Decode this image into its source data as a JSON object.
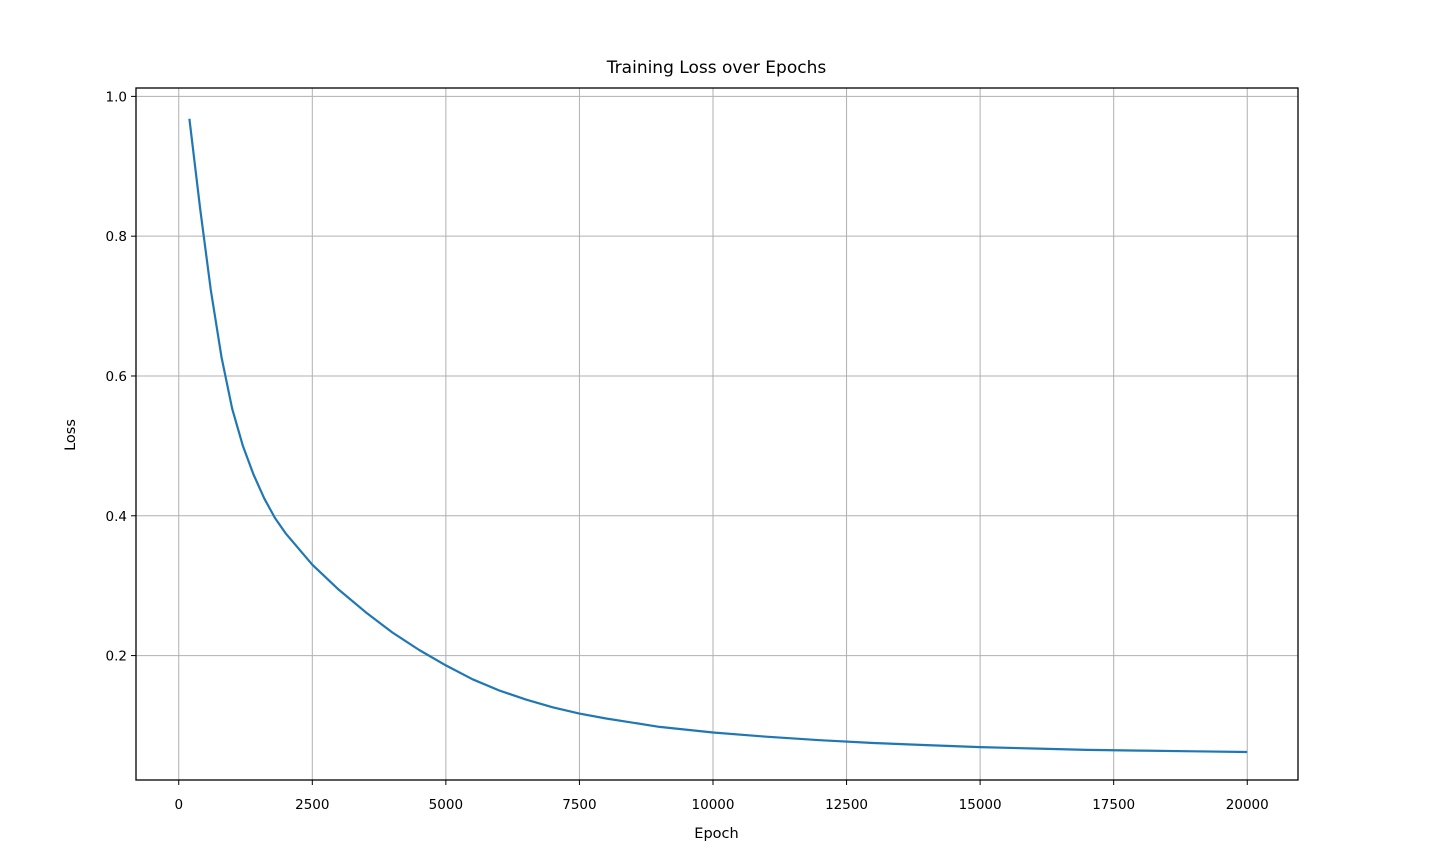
{
  "chart_data": {
    "type": "line",
    "title": "Training Loss over Epochs",
    "xlabel": "Epoch",
    "ylabel": "Loss",
    "xlim": [
      -800,
      20950
    ],
    "ylim": [
      0.022,
      1.012
    ],
    "grid": true,
    "x_ticks": [
      0,
      2500,
      5000,
      7500,
      10000,
      12500,
      15000,
      17500,
      20000
    ],
    "x_tick_labels": [
      "0",
      "2500",
      "5000",
      "7500",
      "10000",
      "12500",
      "15000",
      "17500",
      "20000"
    ],
    "y_ticks": [
      0.2,
      0.4,
      0.6,
      0.8,
      1.0
    ],
    "y_tick_labels": [
      "0.2",
      "0.4",
      "0.6",
      "0.8",
      "1.0"
    ],
    "colors": {
      "line": "#1f77b4",
      "grid": "#b0b0b0",
      "axes": "#000000"
    },
    "series": [
      {
        "x": [
          200,
          400,
          600,
          800,
          1000,
          1200,
          1400,
          1600,
          1800,
          2000,
          2500,
          3000,
          3500,
          4000,
          4500,
          5000,
          5500,
          6000,
          6500,
          7000,
          7500,
          8000,
          9000,
          10000,
          11000,
          12000,
          13000,
          14000,
          15000,
          16000,
          17000,
          18000,
          19000,
          20000
        ],
        "y": [
          0.968,
          0.84,
          0.723,
          0.627,
          0.553,
          0.5,
          0.459,
          0.425,
          0.397,
          0.375,
          0.33,
          0.294,
          0.262,
          0.233,
          0.208,
          0.186,
          0.166,
          0.15,
          0.137,
          0.126,
          0.117,
          0.11,
          0.098,
          0.09,
          0.084,
          0.079,
          0.075,
          0.072,
          0.069,
          0.067,
          0.065,
          0.064,
          0.063,
          0.062
        ]
      }
    ]
  }
}
